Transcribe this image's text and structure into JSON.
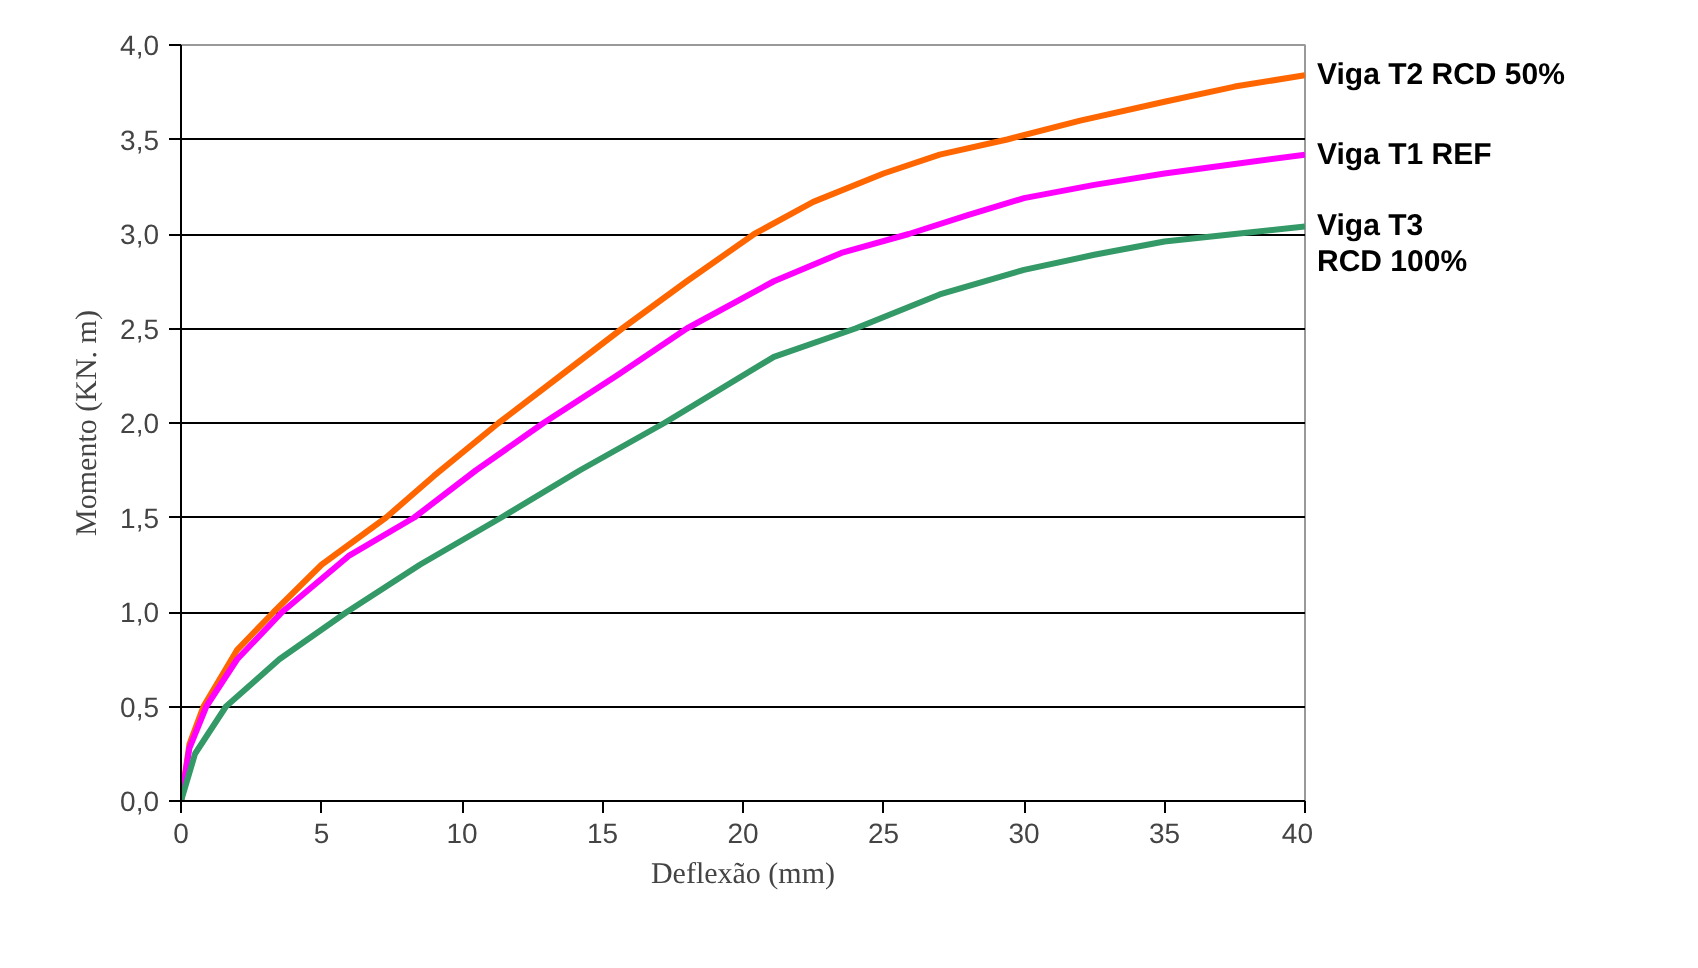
{
  "chart_data": {
    "type": "line",
    "xlabel": "Deflexão (mm)",
    "ylabel": "Momento (KN. m)",
    "xlim": [
      0,
      40
    ],
    "xticks": [
      0,
      5,
      10,
      15,
      20,
      25,
      30,
      35,
      40
    ],
    "ylim": [
      0,
      4
    ],
    "yticks": [
      {
        "value": 0,
        "label": "0,0"
      },
      {
        "value": 0.5,
        "label": "0,5"
      },
      {
        "value": 1,
        "label": "1,0"
      },
      {
        "value": 1.5,
        "label": "1,5"
      },
      {
        "value": 2,
        "label": "2,0"
      },
      {
        "value": 2.5,
        "label": "2,5"
      },
      {
        "value": 3,
        "label": "3,0"
      },
      {
        "value": 3.5,
        "label": "3,5"
      },
      {
        "value": 4,
        "label": "4,0"
      }
    ],
    "grid": "y",
    "legend": false,
    "marker": "none",
    "line_style": "solid",
    "series": [
      {
        "name": "Viga T2 RCD 50%",
        "color": "#ff6600",
        "x": [
          0,
          0.3,
          0.8,
          2,
          3.3,
          5,
          7.3,
          9,
          11.3,
          13.5,
          15.7,
          18,
          20.4,
          22.5,
          25,
          27,
          29.4,
          32,
          35,
          37.5,
          40
        ],
        "values": [
          0,
          0.3,
          0.5,
          0.8,
          1.0,
          1.25,
          1.5,
          1.72,
          2.0,
          2.25,
          2.5,
          2.75,
          3.0,
          3.17,
          3.32,
          3.42,
          3.5,
          3.6,
          3.7,
          3.78,
          3.84
        ]
      },
      {
        "name": "Viga T1 REF",
        "color": "#ff00ff",
        "x": [
          0,
          0.3,
          0.9,
          2,
          3.6,
          6,
          8.3,
          10.5,
          12.9,
          15.5,
          18,
          21.1,
          23.5,
          25.9,
          28,
          30,
          32.5,
          35,
          37.5,
          40
        ],
        "values": [
          0,
          0.28,
          0.5,
          0.75,
          1.0,
          1.3,
          1.5,
          1.75,
          2.0,
          2.25,
          2.5,
          2.75,
          2.9,
          3.0,
          3.1,
          3.19,
          3.26,
          3.32,
          3.37,
          3.42
        ]
      },
      {
        "name": "Viga T3\nRCD 100%",
        "color": "#339966",
        "x": [
          0,
          0.5,
          1.6,
          3.5,
          5.9,
          8.5,
          11.4,
          14.2,
          17.2,
          21.1,
          24,
          27,
          30,
          32.5,
          35,
          37.5,
          40
        ],
        "values": [
          0,
          0.25,
          0.5,
          0.75,
          1.0,
          1.25,
          1.5,
          1.75,
          2.0,
          2.35,
          2.5,
          2.68,
          2.81,
          2.89,
          2.96,
          3.0,
          3.04
        ]
      }
    ]
  }
}
